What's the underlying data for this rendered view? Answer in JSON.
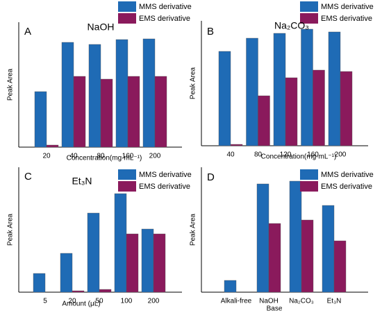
{
  "chart_data": [
    {
      "type": "bar",
      "panel": "A",
      "title": "NaOH",
      "x_label": "Concentration(mg·mL⁻¹)",
      "y_label": "Peak Area",
      "categories": [
        "20",
        "40",
        "80",
        "160",
        "200"
      ],
      "series": [
        {
          "name": "MMS derivative",
          "color": "#1f6bb5",
          "values": [
            80,
            151,
            148,
            155,
            156
          ]
        },
        {
          "name": "EMS derivative",
          "color": "#8a1a5c",
          "values": [
            3,
            102,
            98,
            102,
            102
          ]
        }
      ],
      "ylim": [
        0,
        180
      ]
    },
    {
      "type": "bar",
      "panel": "B",
      "title": "Na₂CO₃",
      "x_label": "Concentration(mg·mL⁻¹)",
      "y_label": "Peak Area",
      "categories": [
        "40",
        "80",
        "120",
        "160",
        "200"
      ],
      "series": [
        {
          "name": "MMS derivative",
          "color": "#1f6bb5",
          "values": [
            136,
            155,
            162,
            168,
            164
          ]
        },
        {
          "name": "EMS derivative",
          "color": "#8a1a5c",
          "values": [
            2,
            72,
            98,
            109,
            107
          ]
        }
      ],
      "ylim": [
        0,
        180
      ]
    },
    {
      "type": "bar",
      "panel": "C",
      "title": "Et₃N",
      "x_label": "Amount (μL)",
      "y_label": "Peak Area",
      "categories": [
        "5",
        "20",
        "50",
        "100",
        "200"
      ],
      "series": [
        {
          "name": "MMS derivative",
          "color": "#1f6bb5",
          "values": [
            27,
            56,
            114,
            142,
            91
          ]
        },
        {
          "name": "EMS derivative",
          "color": "#8a1a5c",
          "values": [
            0,
            2,
            4,
            84,
            84
          ]
        }
      ],
      "ylim": [
        0,
        180
      ]
    },
    {
      "type": "bar",
      "panel": "D",
      "x_label": "Base",
      "y_label": "Peak Area",
      "categories": [
        "Alkali-free",
        "NaOH",
        "Na₂CO₃",
        "Et₃N"
      ],
      "series": [
        {
          "name": "MMS derivative",
          "color": "#1f6bb5",
          "values": [
            17,
            156,
            160,
            125
          ]
        },
        {
          "name": "EMS derivative",
          "color": "#8a1a5c",
          "values": [
            0,
            99,
            104,
            74
          ]
        }
      ],
      "ylim": [
        0,
        180
      ]
    }
  ]
}
